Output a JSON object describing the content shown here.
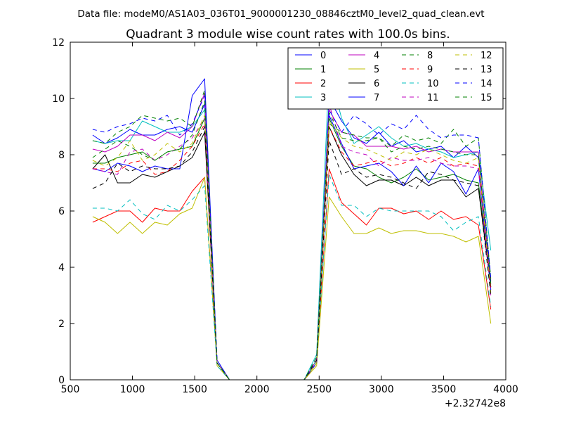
{
  "file_label": "Data file: modeM0/AS1A03_036T01_9000001230_08846cztM0_level2_quad_clean.evt",
  "chart_data": {
    "type": "line",
    "title": "Quadrant 3 module wise count rates with 100.0s bins.",
    "xlabel": "",
    "ylabel": "",
    "x_offset_label": "+2.32742e8",
    "xlim": [
      500,
      4000
    ],
    "ylim": [
      0,
      12
    ],
    "x_ticks": [
      500,
      1000,
      1500,
      2000,
      2500,
      3000,
      3500,
      4000
    ],
    "y_ticks": [
      0,
      2,
      4,
      6,
      8,
      10,
      12
    ],
    "grid": false,
    "legend_position": "top-right",
    "legend_columns": 4,
    "x": [
      680,
      780,
      880,
      980,
      1080,
      1180,
      1280,
      1380,
      1480,
      1580,
      1680,
      1780,
      1880,
      1980,
      2080,
      2180,
      2280,
      2380,
      2480,
      2580,
      2680,
      2780,
      2880,
      2980,
      3080,
      3180,
      3280,
      3380,
      3480,
      3580,
      3680,
      3780,
      3880
    ],
    "series": [
      {
        "name": "0",
        "color": "#0000ff",
        "dash": "solid",
        "values": [
          8.7,
          8.4,
          8.6,
          8.9,
          8.7,
          8.7,
          8.9,
          9.0,
          8.8,
          9.8,
          0.7,
          0,
          0,
          0,
          0,
          0,
          0,
          0,
          0.7,
          10.0,
          9.2,
          8.6,
          8.4,
          8.8,
          8.3,
          8.5,
          8.1,
          8.2,
          8.3,
          7.9,
          8.3,
          7.9,
          3.5
        ]
      },
      {
        "name": "1",
        "color": "#008000",
        "dash": "solid",
        "values": [
          7.7,
          7.7,
          7.9,
          8.0,
          8.1,
          7.8,
          8.1,
          8.2,
          8.3,
          9.3,
          0.6,
          0,
          0,
          0,
          0,
          0,
          0,
          0,
          0.7,
          9.3,
          8.3,
          7.6,
          7.5,
          7.2,
          7.0,
          7.2,
          7.5,
          7.1,
          7.2,
          7.3,
          7.1,
          7.0,
          3.4
        ]
      },
      {
        "name": "2",
        "color": "#ff0000",
        "dash": "solid",
        "values": [
          5.6,
          5.8,
          6.0,
          6.0,
          5.6,
          6.1,
          6.0,
          6.0,
          6.7,
          7.2,
          0.6,
          0,
          0,
          0,
          0,
          0,
          0,
          0,
          0.6,
          7.5,
          6.3,
          5.9,
          5.5,
          6.1,
          6.1,
          5.9,
          6.0,
          5.7,
          6.0,
          5.7,
          5.8,
          5.5,
          2.5
        ]
      },
      {
        "name": "3",
        "color": "#00bfbf",
        "dash": "solid",
        "values": [
          8.5,
          8.4,
          8.5,
          8.5,
          9.2,
          9.0,
          8.8,
          8.8,
          9.0,
          9.6,
          0.6,
          0,
          0,
          0,
          0,
          0,
          0,
          0,
          0.9,
          11.0,
          9.3,
          8.4,
          8.7,
          9.0,
          8.6,
          8.3,
          8.4,
          8.2,
          8.1,
          7.9,
          8.0,
          8.1,
          4.6
        ]
      },
      {
        "name": "4",
        "color": "#bf00bf",
        "dash": "solid",
        "values": [
          8.2,
          8.1,
          8.3,
          8.7,
          8.7,
          8.5,
          8.8,
          8.6,
          9.0,
          10.2,
          0.6,
          0,
          0,
          0,
          0,
          0,
          0,
          0,
          0.7,
          9.6,
          8.8,
          8.7,
          8.3,
          8.3,
          8.3,
          8.2,
          8.3,
          8.1,
          8.2,
          8.1,
          8.1,
          8.1,
          3.3
        ]
      },
      {
        "name": "5",
        "color": "#bfbf00",
        "dash": "solid",
        "values": [
          5.8,
          5.6,
          5.2,
          5.6,
          5.2,
          5.6,
          5.5,
          5.9,
          6.1,
          7.2,
          0.5,
          0,
          0,
          0,
          0,
          0,
          0,
          0,
          0.5,
          6.5,
          5.8,
          5.2,
          5.2,
          5.4,
          5.2,
          5.3,
          5.3,
          5.2,
          5.2,
          5.1,
          4.9,
          5.1,
          2.0
        ]
      },
      {
        "name": "6",
        "color": "#000000",
        "dash": "solid",
        "values": [
          7.5,
          8.0,
          7.0,
          7.0,
          7.3,
          7.2,
          7.4,
          7.6,
          7.9,
          8.8,
          0.6,
          0,
          0,
          0,
          0,
          0,
          0,
          0,
          0.6,
          9.0,
          8.0,
          7.3,
          6.9,
          7.1,
          7.1,
          6.9,
          7.2,
          6.9,
          7.1,
          7.1,
          6.5,
          6.8,
          3.3
        ]
      },
      {
        "name": "7",
        "color": "#0000ff",
        "dash": "solid",
        "values": [
          7.5,
          7.4,
          7.7,
          7.6,
          7.4,
          7.6,
          7.5,
          7.5,
          10.1,
          10.7,
          0.6,
          0,
          0,
          0,
          0,
          0,
          0,
          0,
          0.6,
          9.4,
          8.4,
          7.5,
          7.6,
          7.7,
          7.4,
          6.9,
          7.6,
          7.0,
          7.7,
          7.4,
          6.6,
          7.5,
          3.2
        ]
      },
      {
        "name": "8",
        "color": "#008000",
        "dash": "dashed",
        "values": [
          8.5,
          8.4,
          8.8,
          9.0,
          9.4,
          9.3,
          9.2,
          9.3,
          9.0,
          10.3,
          0.6,
          0,
          0,
          0,
          0,
          0,
          0,
          0,
          0.8,
          9.1,
          8.8,
          8.7,
          8.6,
          8.6,
          8.3,
          8.7,
          8.5,
          8.6,
          8.4,
          8.9,
          8.3,
          8.6,
          3.6
        ]
      },
      {
        "name": "9",
        "color": "#ff0000",
        "dash": "dashed",
        "values": [
          7.5,
          7.5,
          7.4,
          7.7,
          7.8,
          7.3,
          7.4,
          7.8,
          8.3,
          9.1,
          0.6,
          0,
          0,
          0,
          0,
          0,
          0,
          0,
          0.7,
          9.0,
          8.1,
          7.6,
          7.7,
          7.8,
          7.6,
          7.7,
          7.9,
          7.7,
          7.9,
          7.6,
          7.7,
          7.6,
          3.2
        ]
      },
      {
        "name": "10",
        "color": "#00bfbf",
        "dash": "dashed",
        "values": [
          6.1,
          6.1,
          6.0,
          6.4,
          5.9,
          5.7,
          6.2,
          6.0,
          6.4,
          6.9,
          0.5,
          0,
          0,
          0,
          0,
          0,
          0,
          0,
          0.7,
          7.3,
          6.2,
          6.2,
          5.8,
          6.1,
          6.0,
          6.0,
          6.0,
          6.0,
          5.8,
          5.3,
          5.6,
          5.8,
          2.6
        ]
      },
      {
        "name": "11",
        "color": "#bf00bf",
        "dash": "dashed",
        "values": [
          7.5,
          7.4,
          7.3,
          8.1,
          8.2,
          7.8,
          8.0,
          8.3,
          8.6,
          9.3,
          0.6,
          0,
          0,
          0,
          0,
          0,
          0,
          0,
          0.7,
          9.8,
          8.3,
          8.1,
          8.0,
          7.6,
          7.9,
          7.8,
          7.8,
          7.9,
          7.7,
          7.6,
          7.6,
          7.5,
          3.0
        ]
      },
      {
        "name": "12",
        "color": "#bfbf00",
        "dash": "dashed",
        "values": [
          7.8,
          7.6,
          7.9,
          8.5,
          7.8,
          8.0,
          8.4,
          8.1,
          8.4,
          9.4,
          0.6,
          0,
          0,
          0,
          0,
          0,
          0,
          0,
          0.6,
          9.2,
          8.6,
          8.3,
          8.2,
          8.0,
          7.8,
          8.1,
          8.0,
          8.2,
          8.0,
          7.8,
          7.7,
          7.9,
          3.1
        ]
      },
      {
        "name": "13",
        "color": "#000000",
        "dash": "dashed",
        "values": [
          6.8,
          7.0,
          7.7,
          7.4,
          7.6,
          7.5,
          7.5,
          7.6,
          8.1,
          9.0,
          0.6,
          0,
          0,
          0,
          0,
          0,
          0,
          0,
          0.7,
          8.5,
          7.3,
          7.5,
          7.2,
          7.3,
          7.2,
          7.0,
          6.8,
          7.4,
          7.3,
          7.1,
          7.0,
          6.9,
          3.0
        ]
      },
      {
        "name": "14",
        "color": "#0000ff",
        "dash": "dashed",
        "values": [
          8.9,
          8.8,
          9.0,
          9.1,
          9.3,
          9.2,
          9.4,
          8.7,
          9.1,
          10.1,
          0.7,
          0,
          0,
          0,
          0,
          0,
          0,
          0,
          0.8,
          9.6,
          8.8,
          9.4,
          9.1,
          8.7,
          9.1,
          8.9,
          9.4,
          8.9,
          8.6,
          8.7,
          8.7,
          8.6,
          3.6
        ]
      },
      {
        "name": "15",
        "color": "#008000",
        "dash": "dashed",
        "values": [
          7.9,
          8.2,
          8.5,
          8.3,
          8.0,
          7.8,
          8.1,
          8.2,
          8.7,
          9.9,
          0.6,
          0,
          0,
          0,
          0,
          0,
          0,
          0,
          0.8,
          9.5,
          8.6,
          8.5,
          8.5,
          8.6,
          8.1,
          8.3,
          8.2,
          8.3,
          8.2,
          8.1,
          8.0,
          8.0,
          3.4
        ]
      }
    ]
  }
}
